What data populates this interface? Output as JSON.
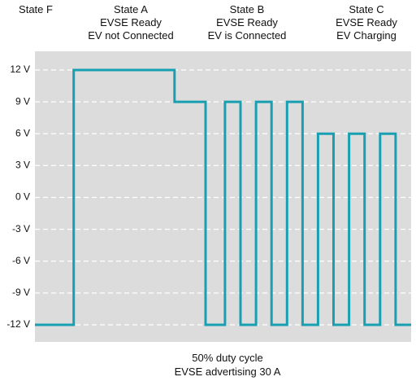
{
  "chart_data": {
    "type": "line",
    "title": "",
    "xlabel": "",
    "ylabel": "",
    "ylim": [
      -12,
      12
    ],
    "y_ticks": [
      "12 V",
      "9 V",
      "6 V",
      "3 V",
      "0 V",
      "-3 V",
      "-6 V",
      "-9 V",
      "-12 V"
    ],
    "y_tick_values": [
      12,
      9,
      6,
      3,
      0,
      -3,
      -6,
      -9,
      -12
    ],
    "grid": true,
    "legend": "none",
    "x_axis_visible": false,
    "state_labels": [
      {
        "lines": [
          "State F"
        ]
      },
      {
        "lines": [
          "State A",
          "EVSE Ready",
          "EV not Connected"
        ]
      },
      {
        "lines": [
          "State B",
          "EVSE Ready",
          "EV is Connected"
        ]
      },
      {
        "lines": [
          "State C",
          "EVSE Ready",
          "EV Charging"
        ]
      }
    ],
    "annotations": [
      "50% duty cycle",
      "EVSE advertising 30 A"
    ],
    "series": [
      {
        "points": [
          [
            0,
            -12
          ],
          [
            5,
            -12
          ],
          [
            5,
            12
          ],
          [
            18,
            12
          ],
          [
            18,
            9
          ],
          [
            22,
            9
          ],
          [
            22,
            -12
          ],
          [
            24.5,
            -12
          ],
          [
            24.5,
            9
          ],
          [
            26.5,
            9
          ],
          [
            26.5,
            -12
          ],
          [
            28.5,
            -12
          ],
          [
            28.5,
            9
          ],
          [
            30.5,
            9
          ],
          [
            30.5,
            -12
          ],
          [
            32.5,
            -12
          ],
          [
            32.5,
            9
          ],
          [
            34.5,
            9
          ],
          [
            34.5,
            -12
          ],
          [
            36.5,
            -12
          ],
          [
            36.5,
            6
          ],
          [
            38.5,
            6
          ],
          [
            38.5,
            -12
          ],
          [
            40.5,
            -12
          ],
          [
            40.5,
            6
          ],
          [
            42.5,
            6
          ],
          [
            42.5,
            -12
          ],
          [
            44.5,
            -12
          ],
          [
            44.5,
            6
          ],
          [
            46.5,
            6
          ],
          [
            46.5,
            -12
          ],
          [
            48.5,
            -12
          ]
        ]
      }
    ],
    "colors": {
      "line": "#18a0b2",
      "plot_background": "#dcdcdc",
      "grid": "#ffffff"
    }
  }
}
